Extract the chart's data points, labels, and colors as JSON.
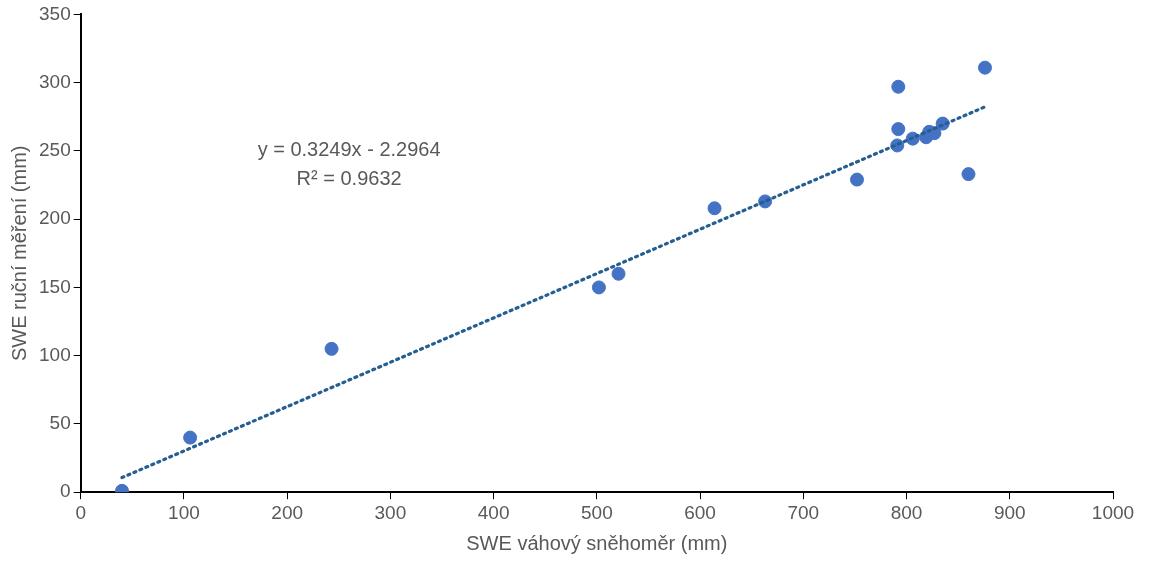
{
  "chart_data": {
    "type": "scatter",
    "xlabel": "SWE váhový sněhoměr (mm)",
    "ylabel": "SWE ruční měření (mm)",
    "xlim": [
      0,
      1000
    ],
    "xticks": [
      0,
      100,
      200,
      300,
      400,
      500,
      600,
      700,
      800,
      900,
      1000
    ],
    "ylim": [
      0,
      350
    ],
    "yticks": [
      0,
      50,
      100,
      150,
      200,
      250,
      300,
      350
    ],
    "grid": false,
    "legend": false,
    "marker": "circle",
    "annotations": [
      "y = 0.3249x - 2.2964",
      "R² = 0.9632"
    ],
    "series": [
      {
        "type": "scatter",
        "color": "#4472c4",
        "x": [
          40,
          106,
          243,
          502,
          521,
          614,
          663,
          752,
          791,
          792,
          792,
          806,
          819,
          822,
          827,
          835,
          860,
          876
        ],
        "values": [
          1,
          40,
          105,
          150,
          160,
          208,
          213,
          229,
          254,
          266,
          297,
          259,
          260,
          264,
          263,
          270,
          233,
          311
        ]
      },
      {
        "type": "line",
        "color": "#255e91",
        "line_style": "dotted",
        "marker": "none",
        "x": [
          40,
          876
        ],
        "values": [
          10.7,
          282.3
        ]
      }
    ]
  }
}
